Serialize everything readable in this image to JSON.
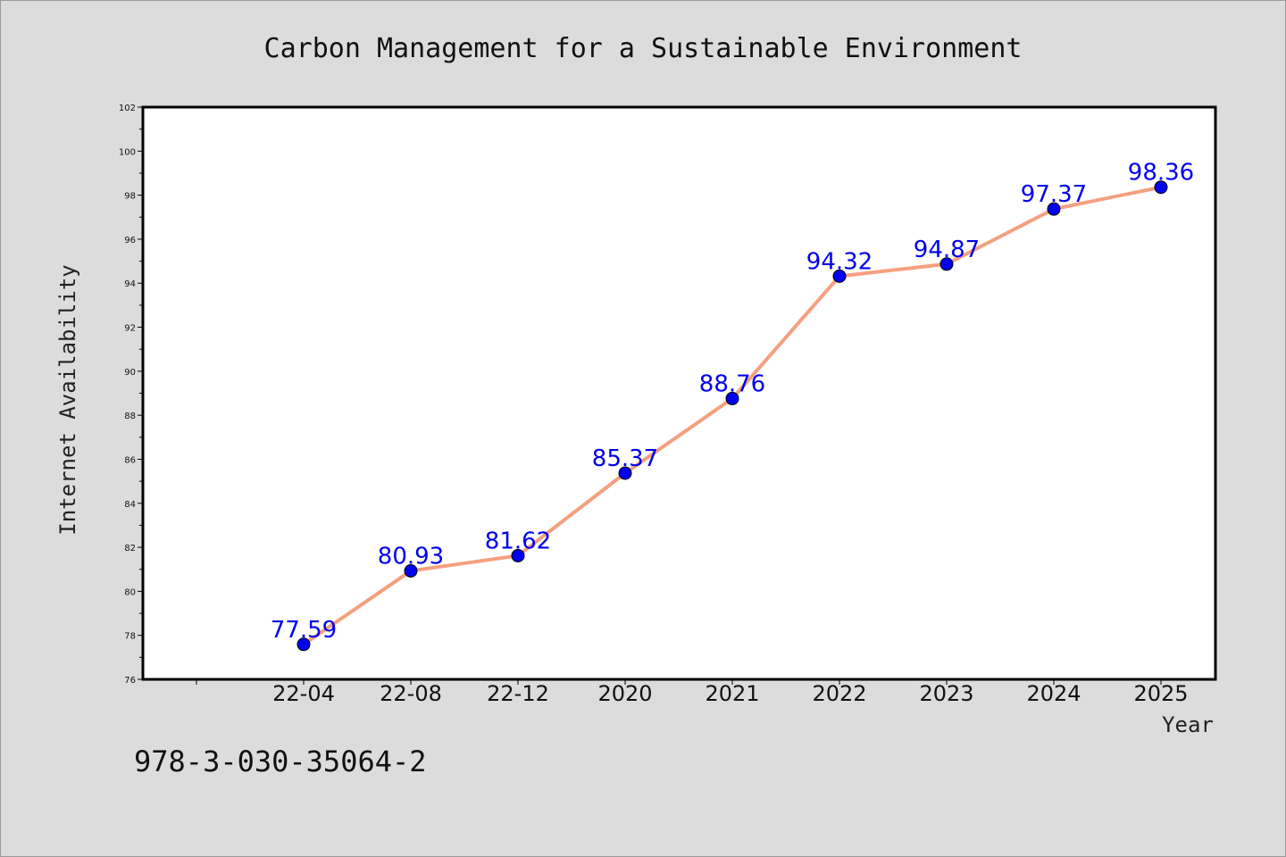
{
  "chart_data": {
    "type": "line",
    "title": "Carbon Management for a Sustainable Environment",
    "xlabel": "Year",
    "ylabel": "Internet Availability",
    "categories": [
      "22-04",
      "22-08",
      "22-12",
      "2020",
      "2021",
      "2022",
      "2023",
      "2024",
      "2025"
    ],
    "values": [
      77.59,
      80.93,
      81.62,
      85.37,
      88.76,
      94.32,
      94.87,
      97.37,
      98.36
    ],
    "data_labels": [
      "77.59",
      "80.93",
      "81.62",
      "85.37",
      "88.76",
      "94.32",
      "94.87",
      "97.37",
      "98.36"
    ],
    "ylim": [
      76,
      102
    ],
    "yticks": [
      76,
      78,
      80,
      82,
      84,
      86,
      88,
      90,
      92,
      94,
      96,
      98,
      100,
      102
    ],
    "grid": false,
    "line_color": "#f4a07f",
    "marker_color": "#0000ee",
    "label_color": "#0000ee"
  },
  "footer": {
    "code": "978-3-030-35064-2"
  }
}
